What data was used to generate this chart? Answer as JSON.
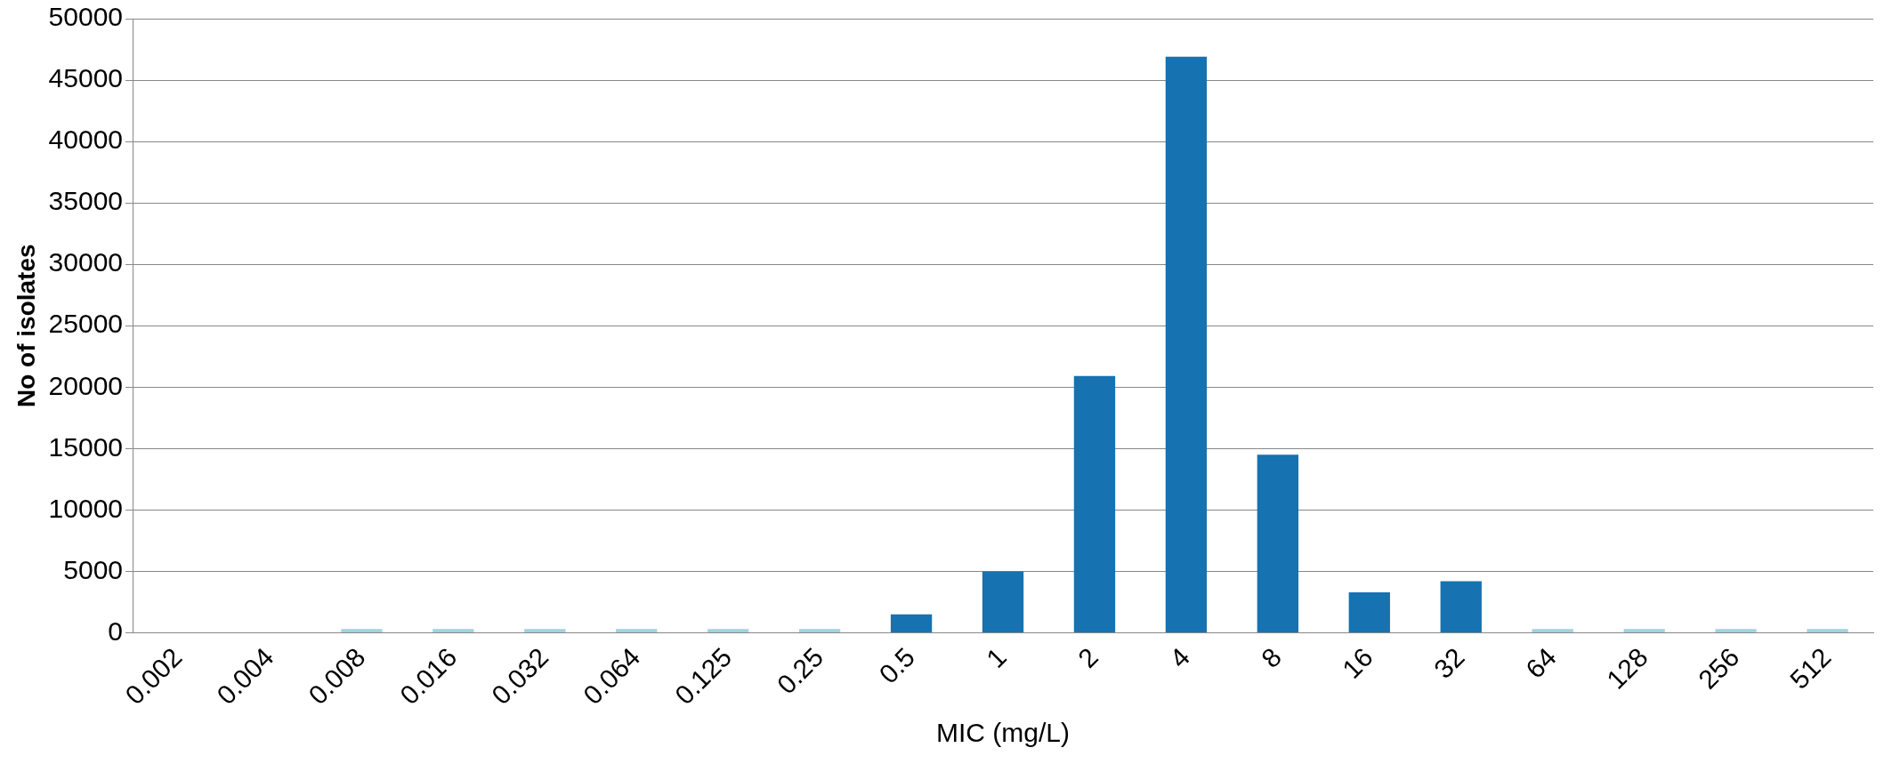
{
  "chart_data": {
    "type": "bar",
    "xlabel": "MIC (mg/L)",
    "ylabel": "No of isolates",
    "categories": [
      "0.002",
      "0.004",
      "0.008",
      "0.016",
      "0.032",
      "0.064",
      "0.125",
      "0.25",
      "0.5",
      "1",
      "2",
      "4",
      "8",
      "16",
      "32",
      "64",
      "128",
      "256",
      "512"
    ],
    "values": [
      0,
      0,
      300,
      300,
      300,
      300,
      300,
      300,
      1500,
      5000,
      20900,
      46900,
      14500,
      3300,
      4200,
      300,
      300,
      300,
      300
    ],
    "colors": [
      "#9fd3e3",
      "#9fd3e3",
      "#9fd3e3",
      "#9fd3e3",
      "#9fd3e3",
      "#9fd3e3",
      "#9fd3e3",
      "#9fd3e3",
      "#1672b0",
      "#1672b0",
      "#1672b0",
      "#1672b0",
      "#1672b0",
      "#1672b0",
      "#1672b0",
      "#9fd3e3",
      "#9fd3e3",
      "#9fd3e3",
      "#9fd3e3"
    ],
    "ylim": [
      0,
      50000
    ],
    "yticks": [
      0,
      5000,
      10000,
      15000,
      20000,
      25000,
      30000,
      35000,
      40000,
      45000,
      50000
    ],
    "grid": "y"
  }
}
